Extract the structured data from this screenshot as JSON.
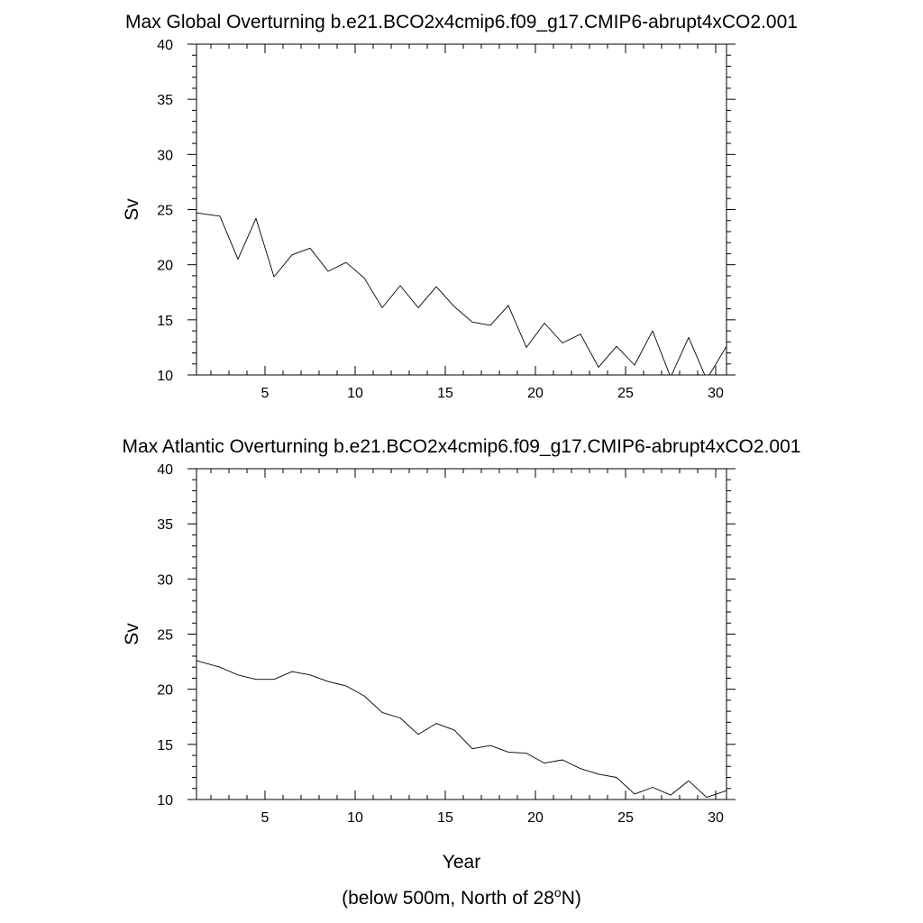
{
  "chart_data": [
    {
      "type": "line",
      "title": "Max Global Overturning b.e21.BCO2x4cmip6.f09_g17.CMIP6-abrupt4xCO2.001",
      "xlabel": "",
      "ylabel": "Sv",
      "xlim": [
        1.2,
        30.6
      ],
      "ylim": [
        10,
        40
      ],
      "x_ticks": [
        5,
        10,
        15,
        20,
        25,
        30
      ],
      "y_ticks": [
        10,
        15,
        20,
        25,
        30,
        35,
        40
      ],
      "grid": false,
      "series": [
        {
          "x": [
            1.2,
            2.5,
            3.5,
            4.5,
            5.5,
            6.5,
            7.5,
            8.5,
            9.5,
            10.5,
            11.5,
            12.5,
            13.5,
            14.5,
            15.5,
            16.5,
            17.5,
            18.5,
            19.5,
            20.5,
            21.5,
            22.5,
            23.5,
            24.5,
            25.5,
            26.5,
            27.5,
            28.5,
            29.5,
            30.6
          ],
          "y": [
            24.7,
            24.4,
            20.5,
            24.2,
            18.9,
            20.9,
            21.5,
            19.4,
            20.2,
            18.8,
            16.1,
            18.1,
            16.1,
            18.0,
            16.2,
            14.8,
            14.5,
            16.3,
            12.5,
            14.7,
            12.9,
            13.7,
            10.7,
            12.6,
            10.9,
            14.0,
            9.8,
            13.4,
            9.6,
            12.6
          ]
        }
      ]
    },
    {
      "type": "line",
      "title": "Max Atlantic Overturning b.e21.BCO2x4cmip6.f09_g17.CMIP6-abrupt4xCO2.001",
      "xlabel": "Year",
      "ylabel": "Sv",
      "xlim": [
        1.2,
        30.6
      ],
      "ylim": [
        10,
        40
      ],
      "x_ticks": [
        5,
        10,
        15,
        20,
        25,
        30
      ],
      "y_ticks": [
        10,
        15,
        20,
        25,
        30,
        35,
        40
      ],
      "grid": false,
      "series": [
        {
          "x": [
            1.2,
            2.5,
            3.5,
            4.5,
            5.5,
            6.5,
            7.5,
            8.5,
            9.5,
            10.5,
            11.5,
            12.5,
            13.5,
            14.5,
            15.5,
            16.5,
            17.5,
            18.5,
            19.5,
            20.5,
            21.5,
            22.5,
            23.5,
            24.5,
            25.5,
            26.5,
            27.5,
            28.5,
            29.5,
            30.6
          ],
          "y": [
            22.6,
            22.0,
            21.3,
            20.9,
            20.9,
            21.6,
            21.3,
            20.7,
            20.3,
            19.4,
            17.9,
            17.4,
            15.9,
            16.9,
            16.3,
            14.6,
            14.9,
            14.3,
            14.2,
            13.3,
            13.6,
            12.8,
            12.3,
            12.0,
            10.5,
            11.1,
            10.4,
            11.7,
            10.2,
            10.8
          ]
        }
      ]
    }
  ],
  "footnote": {
    "prefix": "(below 500m, North of 28",
    "superscript": "o",
    "suffix": "N)"
  }
}
